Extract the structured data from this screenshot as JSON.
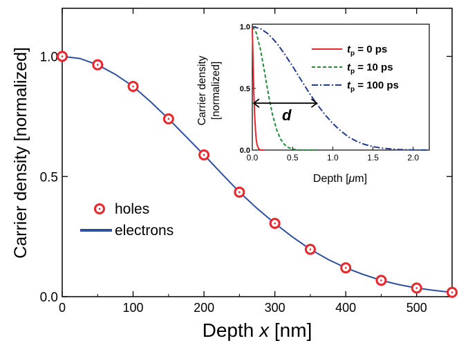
{
  "chart_data": [
    {
      "type": "scatter",
      "title": "",
      "xlabel_main": "Depth ",
      "xlabel_var": "x",
      "xlabel_unit": " [nm]",
      "ylabel": "Carrier density [normalized]",
      "xlim": [
        0,
        550
      ],
      "ylim": [
        0,
        1.2
      ],
      "xticks": [
        0,
        100,
        200,
        300,
        400,
        500
      ],
      "yticks": [
        0.0,
        0.5,
        1.0
      ],
      "ytick_labels": [
        "0.0",
        "0.5",
        "1.0"
      ],
      "grid": false,
      "legend_position": "center-left",
      "series": [
        {
          "name": "holes",
          "kind": "markers",
          "color": "#e8262b",
          "x": [
            0,
            50,
            100,
            150,
            200,
            250,
            300,
            350,
            400,
            450,
            500,
            550
          ],
          "y": [
            1.0,
            0.965,
            0.875,
            0.74,
            0.59,
            0.435,
            0.305,
            0.197,
            0.12,
            0.068,
            0.036,
            0.018
          ]
        },
        {
          "name": "electrons",
          "kind": "line",
          "color": "#2e4ea0",
          "x": [
            0,
            25,
            50,
            75,
            100,
            125,
            150,
            175,
            200,
            225,
            250,
            275,
            300,
            325,
            350,
            375,
            400,
            425,
            450,
            475,
            500,
            525,
            550
          ],
          "y": [
            1.0,
            0.991,
            0.965,
            0.925,
            0.875,
            0.81,
            0.74,
            0.665,
            0.59,
            0.512,
            0.435,
            0.367,
            0.305,
            0.248,
            0.197,
            0.155,
            0.12,
            0.092,
            0.068,
            0.05,
            0.036,
            0.026,
            0.018
          ]
        }
      ]
    },
    {
      "type": "line",
      "title": "",
      "xlabel_main": "Depth [",
      "xlabel_var": "μ",
      "xlabel_unit": "m]",
      "ylabel_line1": "Carrier density",
      "ylabel_line2": "[normalized]",
      "xlim": [
        0,
        2.2
      ],
      "ylim": [
        0,
        1.02
      ],
      "xticks": [
        0.0,
        0.5,
        1.0,
        1.5,
        2.0
      ],
      "xtick_labels": [
        "0.0",
        "0.5",
        "1.0",
        "1.5",
        "2.0"
      ],
      "yticks": [
        0.0,
        0.5,
        1.0
      ],
      "ytick_labels": [
        "0.0",
        "0.5",
        "1.0"
      ],
      "grid": false,
      "legend_position": "top-right",
      "annotation": {
        "label": "d",
        "x_from": 0.0,
        "x_to": 0.82,
        "y": 0.38
      },
      "series": [
        {
          "name_var": "t",
          "name_sub": "p",
          "name_rest": " = 0 ps",
          "color": "#e8262b",
          "dash": "solid",
          "x": [
            0,
            0.01,
            0.02,
            0.03,
            0.04,
            0.05,
            0.06,
            0.08,
            0.1,
            0.15
          ],
          "y": [
            1.0,
            0.7,
            0.45,
            0.27,
            0.15,
            0.08,
            0.04,
            0.01,
            0.0,
            0.0
          ]
        },
        {
          "name_var": "t",
          "name_sub": "p",
          "name_rest": " = 10 ps",
          "color": "#1f8a3c",
          "dash": "dashed",
          "x": [
            0,
            0.05,
            0.1,
            0.15,
            0.2,
            0.25,
            0.3,
            0.35,
            0.4,
            0.45,
            0.5,
            0.55,
            0.6,
            0.7,
            0.8
          ],
          "y": [
            1.0,
            0.95,
            0.82,
            0.64,
            0.45,
            0.29,
            0.17,
            0.09,
            0.045,
            0.02,
            0.008,
            0.003,
            0.0,
            0.0,
            0.0
          ]
        },
        {
          "name_var": "t",
          "name_sub": "p",
          "name_rest": " = 100 ps",
          "color": "#233a8c",
          "dash": "dashdot",
          "x": [
            0,
            0.1,
            0.2,
            0.3,
            0.4,
            0.5,
            0.6,
            0.7,
            0.8,
            0.9,
            1.0,
            1.1,
            1.2,
            1.3,
            1.4,
            1.5,
            1.6,
            1.8,
            2.0,
            2.2
          ],
          "y": [
            1.0,
            0.985,
            0.94,
            0.87,
            0.78,
            0.68,
            0.575,
            0.47,
            0.375,
            0.29,
            0.215,
            0.155,
            0.105,
            0.07,
            0.045,
            0.028,
            0.016,
            0.005,
            0.001,
            0.0
          ]
        }
      ]
    }
  ]
}
